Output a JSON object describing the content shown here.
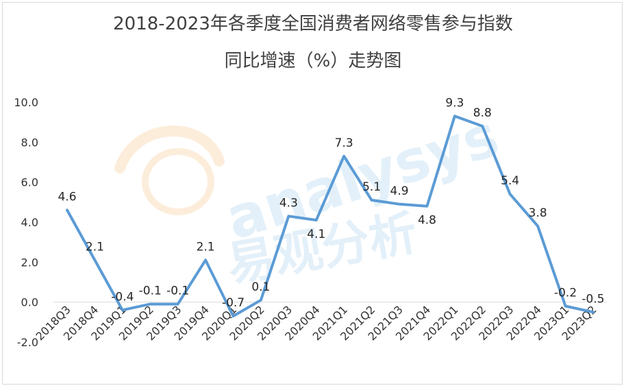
{
  "title": "2018-2023年各季度全国消费者网络零售参与指数",
  "subtitle": "同比增速（%）走势图",
  "watermark": {
    "latin": "analysys",
    "chinese": "易观分析"
  },
  "chart_data": {
    "type": "line",
    "title": "2018-2023年各季度全国消费者网络零售参与指数",
    "subtitle": "同比增速（%）走势图",
    "categories": [
      "2018Q3",
      "2018Q4",
      "2019Q1",
      "2019Q2",
      "2019Q3",
      "2019Q4",
      "2020Q1",
      "2020Q2",
      "2020Q3",
      "2020Q4",
      "2021Q1",
      "2021Q2",
      "2021Q3",
      "2021Q4",
      "2022Q1",
      "2022Q2",
      "2022Q3",
      "2022Q4",
      "2023Q1",
      "2023Q2"
    ],
    "values": [
      4.6,
      2.1,
      -0.4,
      -0.1,
      -0.1,
      2.1,
      -0.7,
      0.1,
      4.3,
      4.1,
      7.3,
      5.1,
      4.9,
      4.8,
      9.3,
      8.8,
      5.4,
      3.8,
      -0.2,
      -0.5
    ],
    "data_labels": [
      "4.6",
      "2.1",
      "-0.4",
      "-0.1",
      "-0.1",
      "2.1",
      "-0.7",
      "0.1",
      "4.3",
      "4.1",
      "7.3",
      "5.1",
      "4.9",
      "4.8",
      "9.3",
      "8.8",
      "5.4",
      "3.8",
      "-0.2",
      "-0.5"
    ],
    "y_ticks": [
      "-2.0",
      "0.0",
      "2.0",
      "4.0",
      "6.0",
      "8.0",
      "10.0"
    ],
    "ylim": [
      -2,
      10
    ],
    "line_color": "#5B9BD5",
    "grid": false,
    "legend": "none"
  }
}
